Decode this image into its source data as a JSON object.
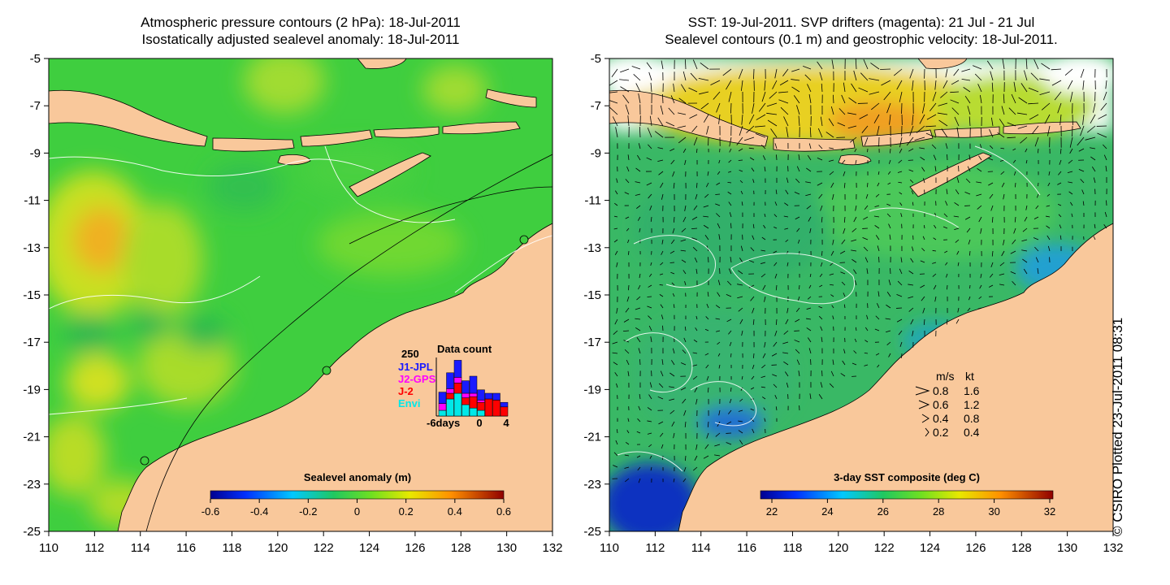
{
  "left_panel": {
    "title_line1": "Atmospheric pressure contours (2 hPa): 18-Jul-2011",
    "title_line2": "Isostatically adjusted sealevel anomaly: 18-Jul-2011",
    "x_ticks": [
      "110",
      "112",
      "114",
      "116",
      "118",
      "120",
      "122",
      "124",
      "126",
      "128",
      "130",
      "132"
    ],
    "y_ticks": [
      "-5",
      "-7",
      "-9",
      "-11",
      "-13",
      "-15",
      "-17",
      "-19",
      "-21",
      "-23",
      "-25"
    ],
    "colorbar": {
      "title": "Sealevel anomaly (m)",
      "ticks": [
        "-0.6",
        "-0.4",
        "-0.2",
        "0",
        "0.2",
        "0.4",
        "0.6"
      ]
    },
    "data_count": {
      "title": "Data count",
      "ymax_label": "250",
      "xlabel_left": "-6days",
      "xlabel_mid": "0",
      "xlabel_right": "4",
      "legend": [
        {
          "label": "J1-JPL",
          "color": "#1a1aff"
        },
        {
          "label": "J2-GPS",
          "color": "#ff00ff"
        },
        {
          "label": "J-2",
          "color": "#ff0000"
        },
        {
          "label": "Envi",
          "color": "#00e8e8"
        }
      ]
    }
  },
  "right_panel": {
    "title_line1": "SST: 19-Jul-2011. SVP drifters (magenta): 21 Jul - 21 Jul",
    "title_line2": "Sealevel contours (0.1 m) and geostrophic velocity: 18-Jul-2011.",
    "x_ticks": [
      "110",
      "112",
      "114",
      "116",
      "118",
      "120",
      "122",
      "124",
      "126",
      "128",
      "130",
      "132"
    ],
    "y_ticks": [
      "-5",
      "-7",
      "-9",
      "-11",
      "-13",
      "-15",
      "-17",
      "-19",
      "-21",
      "-23",
      "-25"
    ],
    "colorbar": {
      "title": "3-day SST composite (deg C)",
      "ticks": [
        "22",
        "24",
        "26",
        "28",
        "30",
        "32"
      ]
    },
    "velocity_legend": {
      "header_ms": "m/s",
      "header_kt": "kt",
      "rows": [
        {
          "ms": "0.8",
          "kt": "1.6"
        },
        {
          "ms": "0.6",
          "kt": "1.2"
        },
        {
          "ms": "0.4",
          "kt": "0.8"
        },
        {
          "ms": "0.2",
          "kt": "0.4"
        }
      ]
    }
  },
  "credit": "© CSIRO Plotted 23-Jul-2011 08:31",
  "colors": {
    "land": "#f9c89b",
    "ssh_mid": "#3fce3f",
    "sst_mid": "#39b865"
  }
}
